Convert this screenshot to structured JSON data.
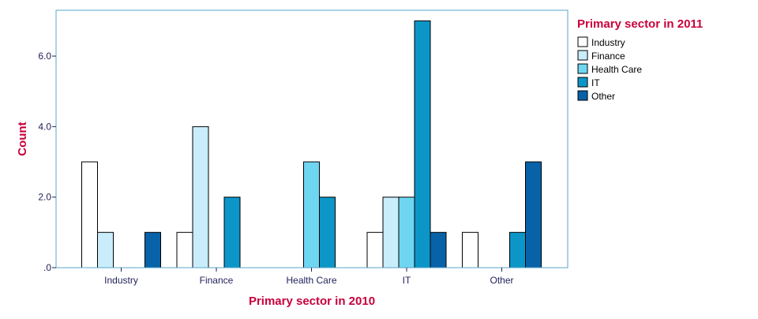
{
  "chart_data": {
    "type": "bar",
    "xlabel": "Primary sector in 2010",
    "ylabel": "Count",
    "legend_title": "Primary sector in 2011",
    "legend_position": "right",
    "grid": false,
    "categories": [
      "Industry",
      "Finance",
      "Health Care",
      "IT",
      "Other"
    ],
    "yticks": [
      0,
      2,
      4,
      6
    ],
    "ytick_labels": [
      ".0",
      "2.0",
      "4.0",
      "6.0"
    ],
    "ylim": [
      0,
      7.3
    ],
    "series": [
      {
        "name": "Industry",
        "color": "#ffffff",
        "values": [
          3,
          1,
          0,
          1,
          1
        ]
      },
      {
        "name": "Finance",
        "color": "#c9edfb",
        "values": [
          1,
          4,
          0,
          2,
          0
        ]
      },
      {
        "name": "Health Care",
        "color": "#6fd6f2",
        "values": [
          0,
          0,
          3,
          2,
          0
        ]
      },
      {
        "name": "IT",
        "color": "#0c96c8",
        "values": [
          0,
          2,
          2,
          7,
          1
        ]
      },
      {
        "name": "Other",
        "color": "#0862a8",
        "values": [
          1,
          0,
          0,
          1,
          3
        ]
      }
    ]
  },
  "colors": {
    "frame": "#5aa6c8",
    "axis_title": "#c8003c",
    "tick_text": "#1f1f5a"
  }
}
